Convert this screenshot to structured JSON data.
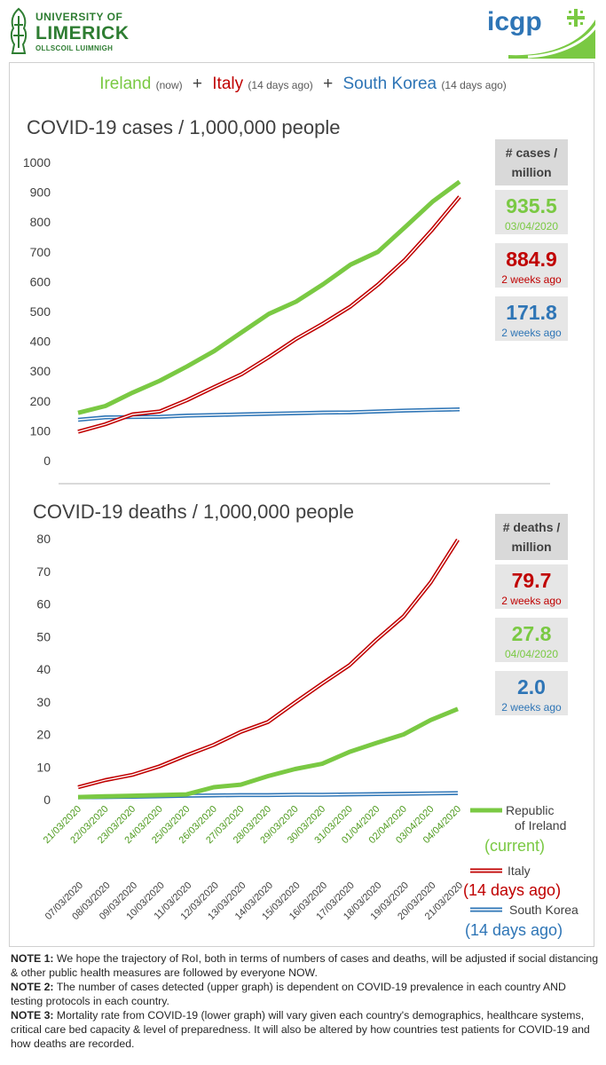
{
  "header": {
    "ul_line1": "UNIVERSITY OF",
    "ul_line2": "LIMERICK",
    "ul_line3": "OLLSCOIL LUIMNIGH",
    "icgp": "icgp"
  },
  "legend_line": {
    "ireland": "Ireland",
    "ireland_note": "(now)",
    "italy": "Italy",
    "italy_note": "(14 days ago)",
    "korea": "South Korea",
    "korea_note": "(14 days ago)",
    "plus": "+"
  },
  "colors": {
    "ireland": "#7ac943",
    "italy": "#c00000",
    "korea": "#2e75b6"
  },
  "cases_boxes": {
    "header_line1": "# cases /",
    "header_line2": "million",
    "ireland_value": "935.5",
    "ireland_sub": "03/04/2020",
    "italy_value": "884.9",
    "italy_sub": "2 weeks ago",
    "korea_value": "171.8",
    "korea_sub": "2 weeks ago"
  },
  "deaths_boxes": {
    "header_line1": "# deaths /",
    "header_line2": "million",
    "italy_value": "79.7",
    "italy_sub": "2 weeks ago",
    "ireland_value": "27.8",
    "ireland_sub": "04/04/2020",
    "korea_value": "2.0",
    "korea_sub": "2 weeks ago"
  },
  "chart_legend": {
    "ireland_line1": "Republic",
    "ireland_line2": "of Ireland",
    "ireland_line3": "(current)",
    "italy_line1": "Italy",
    "italy_line2": "(14 days ago)",
    "korea_line1": "South Korea",
    "korea_line2": "(14 days ago)"
  },
  "chart_data": [
    {
      "type": "line",
      "title": "COVID-19 cases / 1,000,000 people",
      "ylim": [
        0,
        1000
      ],
      "yticks": [
        0,
        100,
        200,
        300,
        400,
        500,
        600,
        700,
        800,
        900,
        1000
      ],
      "grid": false,
      "series": [
        {
          "name": "Ireland",
          "color": "#7ac943",
          "values": [
            160,
            183,
            228,
            268,
            316,
            368,
            430,
            492,
            533,
            592,
            657,
            700,
            783,
            868,
            935.5
          ]
        },
        {
          "name": "Italy",
          "color": "#c00000",
          "values": [
            97,
            122,
            155,
            165,
            203,
            247,
            290,
            347,
            408,
            460,
            517,
            590,
            674,
            775,
            884.9
          ]
        },
        {
          "name": "South Korea",
          "color": "#2e75b6",
          "values": [
            137,
            145,
            146,
            147,
            151,
            153,
            155,
            157,
            159,
            161,
            162,
            165,
            168,
            170,
            171.8
          ]
        }
      ]
    },
    {
      "type": "line",
      "title": "COVID-19 deaths / 1,000,000 people",
      "ylim": [
        0,
        80
      ],
      "yticks": [
        0,
        10,
        20,
        30,
        40,
        50,
        60,
        70,
        80
      ],
      "grid": false,
      "x_ireland": [
        "21/03/2020",
        "22/03/2020",
        "23/03/2020",
        "24/03/2020",
        "25/03/2020",
        "26/03/2020",
        "27/03/2020",
        "28/03/2020",
        "29/03/2020",
        "30/03/2020",
        "31/03/2020",
        "01/04/2020",
        "02/04/2020",
        "03/04/2020",
        "04/04/2020"
      ],
      "x_comparison": [
        "07/03/2020",
        "08/03/2020",
        "09/03/2020",
        "10/03/2020",
        "11/03/2020",
        "12/03/2020",
        "13/03/2020",
        "14/03/2020",
        "15/03/2020",
        "16/03/2020",
        "17/03/2020",
        "18/03/2020",
        "19/03/2020",
        "20/03/2020",
        "21/03/2020"
      ],
      "series": [
        {
          "name": "Republic of Ireland (current)",
          "color": "#7ac943",
          "values": [
            0.8,
            1.0,
            1.2,
            1.4,
            1.6,
            3.8,
            4.6,
            7.2,
            9.4,
            11,
            14.6,
            17.4,
            20,
            24.4,
            27.8
          ]
        },
        {
          "name": "Italy (14 days ago)",
          "color": "#c00000",
          "values": [
            3.8,
            6,
            7.6,
            10.2,
            13.6,
            16.8,
            20.8,
            23.8,
            29.8,
            35.6,
            41.2,
            49,
            56.2,
            66.6,
            79.7
          ]
        },
        {
          "name": "South Korea (14 days ago)",
          "color": "#2e75b6",
          "values": [
            0.7,
            0.8,
            0.9,
            1.0,
            1.2,
            1.3,
            1.4,
            1.4,
            1.5,
            1.5,
            1.6,
            1.7,
            1.8,
            1.9,
            2.0
          ]
        }
      ]
    }
  ],
  "notes": [
    {
      "label": "NOTE 1:",
      "text": " We hope the trajectory of RoI, both in terms of numbers of cases and deaths, will be adjusted if social distancing & other public health measures are followed by everyone NOW."
    },
    {
      "label": "NOTE 2:",
      "text": " The number of cases detected (upper graph) is dependent on COVID-19 prevalence in each country AND testing protocols in each country."
    },
    {
      "label": "NOTE 3:",
      "text": " Mortality rate from COVID-19 (lower graph) will vary given each country's demographics, healthcare systems, critical care bed capacity & level of preparedness. It will also be altered by how countries test patients for COVID-19 and how deaths are recorded."
    }
  ]
}
